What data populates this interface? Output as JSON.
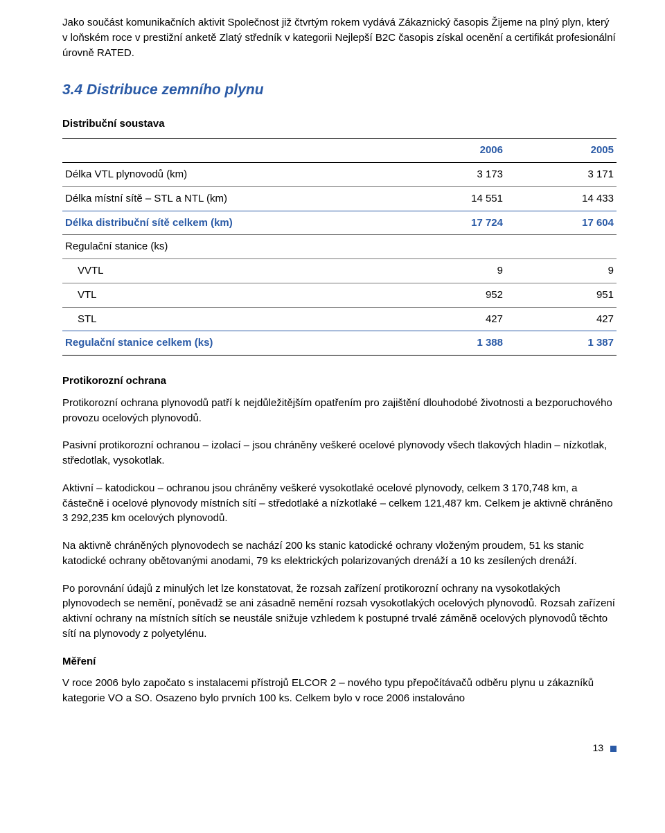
{
  "intro": {
    "para": "Jako součást komunikačních aktivit Společnost již čtvrtým rokem vydává Zákaznický časopis Žijeme na plný plyn, který v loňském roce v prestižní anketě Zlatý středník v kategorii Nejlepší B2C časopis získal ocenění a certifikát profesionální úrovně RATED."
  },
  "section": {
    "heading": "3.4  Distribuce zemního plynu",
    "subheading": "Distribuční soustava"
  },
  "table": {
    "columns": [
      "",
      "2006",
      "2005"
    ],
    "col_widths": [
      "60%",
      "20%",
      "20%"
    ],
    "header_color": "#2a5aa6",
    "blue_row_color": "#2a5aa6",
    "rows": [
      {
        "cells": [
          "Délka VTL plynovodů (km)",
          "3 173",
          "3 171"
        ],
        "top_rule": "dark"
      },
      {
        "cells": [
          "Délka místní sítě – STL a NTL (km)",
          "14 551",
          "14 433"
        ],
        "top_rule": "light"
      },
      {
        "cells": [
          "Délka distribuční sítě celkem (km)",
          "17 724",
          "17 604"
        ],
        "top_rule": "blue",
        "blue": true
      },
      {
        "cells": [
          "Regulační stanice (ks)",
          "",
          ""
        ],
        "top_rule": "light"
      },
      {
        "cells": [
          "VVTL",
          "9",
          "9"
        ],
        "top_rule": "light",
        "indent": true
      },
      {
        "cells": [
          "VTL",
          "952",
          "951"
        ],
        "top_rule": "light",
        "indent": true
      },
      {
        "cells": [
          "STL",
          "427",
          "427"
        ],
        "top_rule": "light",
        "indent": true
      },
      {
        "cells": [
          "Regulační stanice celkem (ks)",
          "1 388",
          "1 387"
        ],
        "top_rule": "blue",
        "blue": true,
        "bottom_rule": "dark"
      }
    ]
  },
  "protikorozni": {
    "heading": "Protikorozní ochrana",
    "p1": "Protikorozní ochrana plynovodů patří k nejdůležitějším opatřením pro zajištění dlouhodobé životnosti a bezporuchového provozu ocelových plynovodů.",
    "p2": "Pasivní protikorozní ochranou – izolací – jsou chráněny veškeré ocelové plynovody všech tlakových hladin – nízkotlak, středotlak, vysokotlak.",
    "p3": "Aktivní – katodickou – ochranou jsou chráněny veškeré vysokotlaké ocelové plynovody, celkem 3 170,748 km, a částečně i ocelové plynovody místních sítí – středotlaké a nízkotlaké – celkem 121,487 km. Celkem je aktivně chráněno 3 292,235 km ocelových plynovodů.",
    "p4": "Na aktivně chráněných plynovodech se nachází 200 ks stanic katodické ochrany vloženým proudem, 51 ks stanic katodické ochrany obětovanými anodami, 79 ks elektrických polarizovaných drenáží a 10 ks zesílených drenáží.",
    "p5": "Po porovnání údajů z minulých let lze konstatovat, že rozsah zařízení protikorozní ochrany na vysokotlakých plynovodech se nemění, poněvadž se ani zásadně nemění rozsah vysokotlakých ocelových plynovodů. Rozsah zařízení aktivní ochrany na místních sítích se neustále snižuje vzhledem k postupné trvalé záměně ocelových plynovodů těchto sítí na plynovody z polyetylénu."
  },
  "mereni": {
    "heading": "Měření",
    "p1": "V roce 2006 bylo započato s instalacemi přístrojů ELCOR 2 – nového typu přepočítávačů odběru plynu u zákazníků kategorie VO a SO. Osazeno bylo prvních 100 ks. Celkem bylo v roce 2006 instalováno"
  },
  "footer": {
    "page": "13"
  }
}
